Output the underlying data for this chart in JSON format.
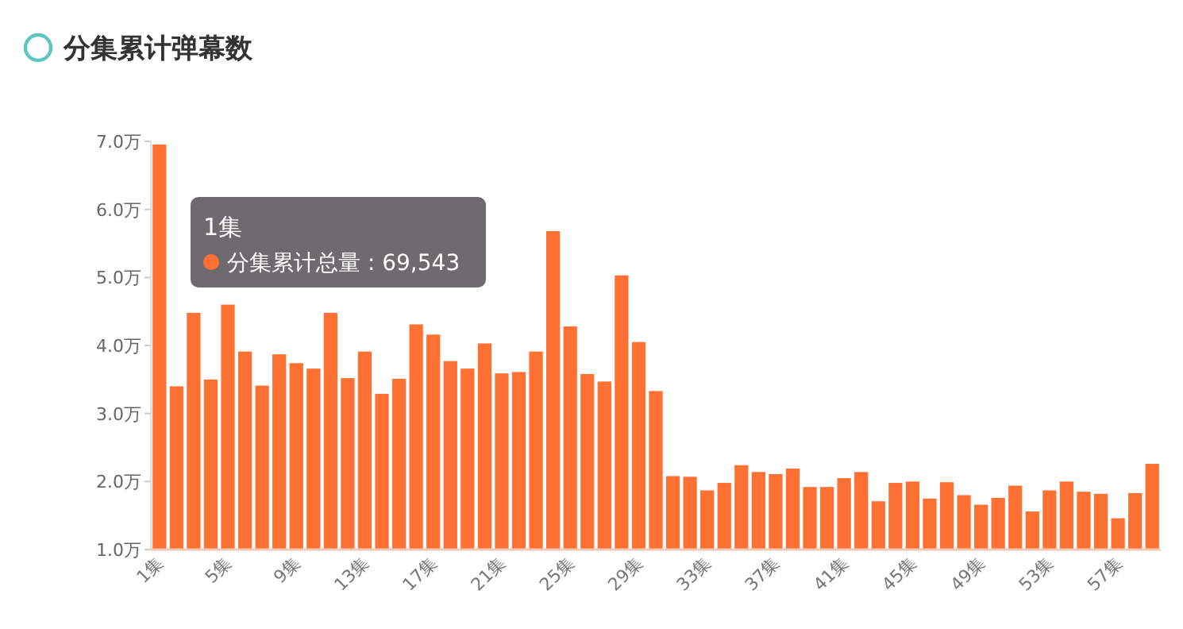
{
  "chart_data": {
    "type": "bar",
    "title": "分集累计弹幕数",
    "categories": [
      "1集",
      null,
      null,
      null,
      "5集",
      null,
      null,
      null,
      "9集",
      null,
      null,
      null,
      "13集",
      null,
      null,
      null,
      "17集",
      null,
      null,
      null,
      "21集",
      null,
      null,
      null,
      "25集",
      null,
      null,
      null,
      "29集",
      null,
      null,
      null,
      "33集",
      null,
      null,
      null,
      "37集",
      null,
      null,
      null,
      "41集",
      null,
      null,
      null,
      "45集",
      null,
      null,
      null,
      "49集",
      null,
      null,
      null,
      "53集",
      null,
      null,
      null,
      "57集",
      null,
      null
    ],
    "values": [
      6.9543,
      3.4,
      4.48,
      3.5,
      4.6,
      3.91,
      3.41,
      3.87,
      3.74,
      3.66,
      4.48,
      3.52,
      3.91,
      3.29,
      3.51,
      4.31,
      4.16,
      3.77,
      3.66,
      4.03,
      3.59,
      3.61,
      3.91,
      5.68,
      4.28,
      3.58,
      3.47,
      5.03,
      4.05,
      3.33,
      2.08,
      2.07,
      1.87,
      1.98,
      2.24,
      2.14,
      2.11,
      2.19,
      1.92,
      1.92,
      2.05,
      2.14,
      1.71,
      1.98,
      2.0,
      1.75,
      1.99,
      1.8,
      1.66,
      1.76,
      1.94,
      1.56,
      1.87,
      2.0,
      1.85,
      1.82,
      1.46,
      1.83,
      2.26
    ],
    "color": "#ff7033",
    "ylim": [
      1,
      7
    ],
    "yticks": [
      {
        "value": 1,
        "label": "1.0万"
      },
      {
        "value": 2,
        "label": "2.0万"
      },
      {
        "value": 3,
        "label": "3.0万"
      },
      {
        "value": 4,
        "label": "4.0万"
      },
      {
        "value": 5,
        "label": "5.0万"
      },
      {
        "value": 6,
        "label": "6.0万"
      },
      {
        "value": 7,
        "label": "7.0万"
      }
    ],
    "grid": false,
    "annotations": [
      "1集",
      "分集累计总量 : 69,543"
    ]
  }
}
